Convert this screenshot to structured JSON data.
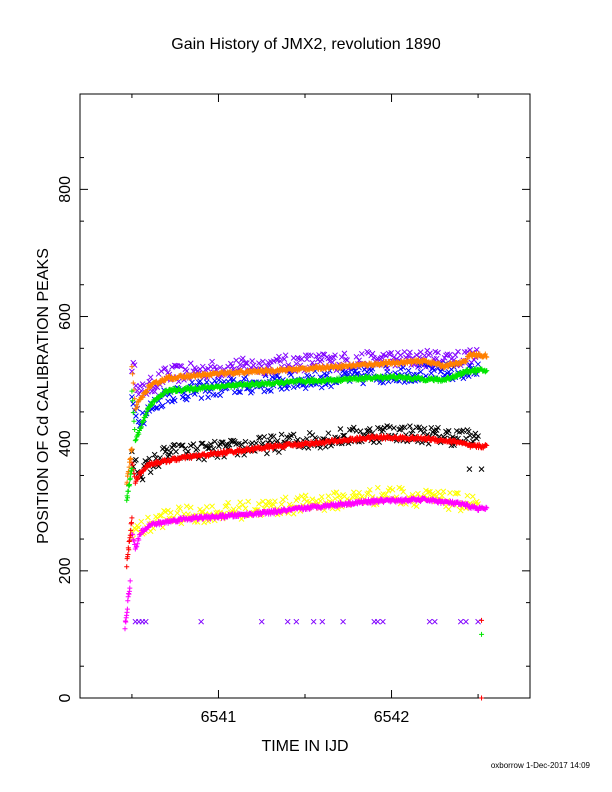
{
  "chart_data": {
    "type": "scatter",
    "title": "Gain History of JMX2, revolution 1890",
    "xlabel": "TIME IN IJD",
    "ylabel": "POSITION OF Cd CALIBRATION PEAKS",
    "xlim": [
      6540.2,
      6542.8
    ],
    "ylim": [
      0,
      950
    ],
    "x_ticks": [
      6541,
      6542
    ],
    "y_ticks": [
      0,
      200,
      400,
      600,
      800
    ],
    "grid": false,
    "series": [
      {
        "color": "#ff8000",
        "marker": "+",
        "trend": [
          [
            6540.5,
            520
          ],
          [
            6540.52,
            455
          ],
          [
            6540.55,
            470
          ],
          [
            6540.6,
            490
          ],
          [
            6540.7,
            503
          ],
          [
            6541.0,
            510
          ],
          [
            6541.5,
            518
          ],
          [
            6542.0,
            527
          ],
          [
            6542.2,
            530
          ],
          [
            6542.3,
            522
          ],
          [
            6542.42,
            528
          ],
          [
            6542.45,
            540
          ],
          [
            6542.55,
            538
          ]
        ]
      },
      {
        "color": "#00e600",
        "marker": "+",
        "trend": [
          [
            6540.5,
            480
          ],
          [
            6540.52,
            405
          ],
          [
            6540.55,
            425
          ],
          [
            6540.6,
            460
          ],
          [
            6540.7,
            483
          ],
          [
            6541.0,
            490
          ],
          [
            6541.5,
            498
          ],
          [
            6542.0,
            505
          ],
          [
            6542.3,
            500
          ],
          [
            6542.45,
            515
          ],
          [
            6542.55,
            515
          ]
        ]
      },
      {
        "color": "#ff0000",
        "marker": "+",
        "trend": [
          [
            6540.5,
            370
          ],
          [
            6540.52,
            340
          ],
          [
            6540.55,
            355
          ],
          [
            6540.6,
            368
          ],
          [
            6540.8,
            378
          ],
          [
            6541.0,
            385
          ],
          [
            6541.3,
            395
          ],
          [
            6541.6,
            402
          ],
          [
            6541.9,
            410
          ],
          [
            6542.2,
            408
          ],
          [
            6542.4,
            402
          ],
          [
            6542.45,
            396
          ],
          [
            6542.55,
            396
          ]
        ]
      },
      {
        "color": "#ff00ff",
        "marker": "+",
        "trend": [
          [
            6540.5,
            260
          ],
          [
            6540.52,
            235
          ],
          [
            6540.55,
            260
          ],
          [
            6540.6,
            272
          ],
          [
            6540.8,
            282
          ],
          [
            6541.0,
            285
          ],
          [
            6541.3,
            292
          ],
          [
            6541.6,
            302
          ],
          [
            6541.9,
            310
          ],
          [
            6542.2,
            312
          ],
          [
            6542.4,
            305
          ],
          [
            6542.5,
            298
          ],
          [
            6542.55,
            298
          ]
        ]
      },
      {
        "color": "#8000ff",
        "marker": "x",
        "trend": [
          [
            6540.5,
            525
          ],
          [
            6540.55,
            480
          ],
          [
            6540.7,
            508
          ],
          [
            6541.0,
            518
          ],
          [
            6541.5,
            528
          ],
          [
            6542.0,
            532
          ],
          [
            6542.5,
            535
          ]
        ]
      },
      {
        "color": "#0000ff",
        "marker": "x",
        "trend": [
          [
            6540.5,
            470
          ],
          [
            6540.55,
            440
          ],
          [
            6540.7,
            478
          ],
          [
            6541.0,
            488
          ],
          [
            6541.5,
            500
          ],
          [
            6542.0,
            510
          ],
          [
            6542.5,
            515
          ]
        ]
      },
      {
        "color": "#000000",
        "marker": "x",
        "trend": [
          [
            6540.5,
            375
          ],
          [
            6540.55,
            355
          ],
          [
            6540.7,
            385
          ],
          [
            6541.0,
            390
          ],
          [
            6541.5,
            405
          ],
          [
            6542.0,
            418
          ],
          [
            6542.5,
            408
          ]
        ]
      },
      {
        "color": "#ffff00",
        "marker": "x",
        "trend": [
          [
            6540.5,
            265
          ],
          [
            6540.55,
            265
          ],
          [
            6540.7,
            285
          ],
          [
            6541.0,
            292
          ],
          [
            6541.5,
            305
          ],
          [
            6542.0,
            320
          ],
          [
            6542.5,
            305
          ]
        ]
      }
    ],
    "early_points": [
      {
        "color": "#ff8000",
        "marker": "+",
        "x0": 6540.47,
        "x1": 6540.5,
        "y0": 335,
        "y1": 395
      },
      {
        "color": "#00e600",
        "marker": "+",
        "x0": 6540.47,
        "x1": 6540.5,
        "y0": 312,
        "y1": 360
      },
      {
        "color": "#ff0000",
        "marker": "+",
        "x0": 6540.47,
        "x1": 6540.5,
        "y0": 210,
        "y1": 282
      },
      {
        "color": "#ff00ff",
        "marker": "+",
        "x0": 6540.46,
        "x1": 6540.49,
        "y0": 112,
        "y1": 182
      }
    ],
    "outliers": [
      {
        "color": "#8000ff",
        "marker": "x",
        "y": 120,
        "x": [
          6540.52,
          6540.54,
          6540.56,
          6540.58,
          6540.9,
          6541.25,
          6541.4,
          6541.45,
          6541.55,
          6541.6,
          6541.72,
          6541.9,
          6541.92,
          6541.95,
          6542.22,
          6542.25,
          6542.4,
          6542.43,
          6542.5
        ]
      },
      {
        "color": "#000000",
        "marker": "x",
        "y": 360,
        "x": [
          6542.45,
          6542.52
        ]
      },
      {
        "color": "#ff0000",
        "marker": "+",
        "y": 122,
        "x": [
          6542.52
        ]
      },
      {
        "color": "#00e600",
        "marker": "+",
        "y": 100,
        "x": [
          6542.52
        ]
      },
      {
        "color": "#ff0000",
        "marker": "+",
        "y": 0,
        "x": [
          6542.52
        ]
      }
    ]
  },
  "footer": "oxborrow  1-Dec-2017 14:09"
}
